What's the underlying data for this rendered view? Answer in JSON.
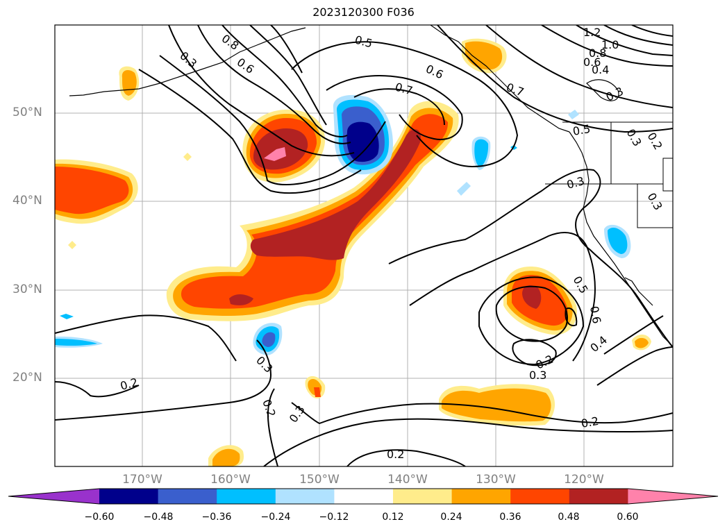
{
  "title": "2023120300 F036",
  "lat_ticks": [
    "50°N",
    "40°N",
    "30°N",
    "20°N"
  ],
  "lon_ticks": [
    "170°W",
    "160°W",
    "150°W",
    "140°W",
    "130°W",
    "120°W"
  ],
  "colorbar": {
    "ticks": [
      "−0.60",
      "−0.48",
      "−0.36",
      "−0.24",
      "−0.12",
      "0.12",
      "0.24",
      "0.36",
      "0.48",
      "0.60"
    ],
    "colors": [
      "#9932cc",
      "#00008b",
      "#3a5fcd",
      "#00bfff",
      "#b0e2ff",
      "#ffffff",
      "#ffec8b",
      "#ffa500",
      "#ff4500",
      "#b22222",
      "#ff82ab"
    ]
  },
  "contour_labels": [
    "0.3",
    "0.8",
    "0.6",
    "0.5",
    "0.6",
    "0.7",
    "0.7",
    "1.2",
    "1.0",
    "0.8",
    "0.6",
    "0.4",
    "0.3",
    "0.5",
    "0.3",
    "0.2",
    "0.3",
    "0.3",
    "0.5",
    "0.6",
    "0.4",
    "0.2",
    "0.3",
    "0.2",
    "0.3",
    "0.2",
    "0.2",
    "0.3",
    "0.2"
  ]
}
